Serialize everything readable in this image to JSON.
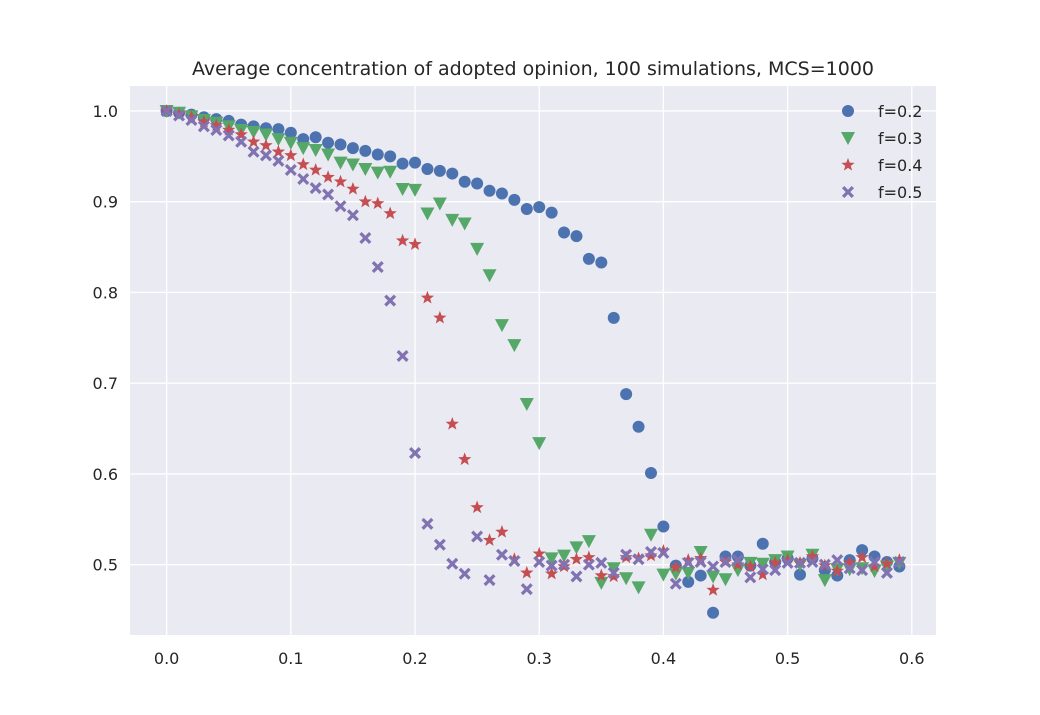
{
  "chart_data": {
    "type": "scatter",
    "title": "Average concentration of adopted opinion, 100 simulations, MCS=1000",
    "xlabel": "",
    "ylabel": "",
    "xlim": [
      -0.0295,
      0.6195
    ],
    "ylim": [
      0.4225,
      1.0275
    ],
    "xticks": [
      0.0,
      0.1,
      0.2,
      0.3,
      0.4,
      0.5,
      0.6
    ],
    "xtick_labels": [
      "0.0",
      "0.1",
      "0.2",
      "0.3",
      "0.4",
      "0.5",
      "0.6"
    ],
    "yticks": [
      0.5,
      0.6,
      0.7,
      0.8,
      0.9,
      1.0
    ],
    "ytick_labels": [
      "0.5",
      "0.6",
      "0.7",
      "0.8",
      "0.9",
      "1.0"
    ],
    "grid": true,
    "legend_position": "top-right",
    "series": [
      {
        "name": "f=0.2",
        "marker": "circle",
        "color": "#4c72b0",
        "x": [
          0.0,
          0.01,
          0.02,
          0.03,
          0.04,
          0.05,
          0.06,
          0.07,
          0.08,
          0.09,
          0.1,
          0.11,
          0.12,
          0.13,
          0.14,
          0.15,
          0.16,
          0.17,
          0.18,
          0.19,
          0.2,
          0.21,
          0.22,
          0.23,
          0.24,
          0.25,
          0.26,
          0.27,
          0.28,
          0.29,
          0.3,
          0.31,
          0.32,
          0.33,
          0.34,
          0.35,
          0.36,
          0.37,
          0.38,
          0.39,
          0.4,
          0.41,
          0.42,
          0.43,
          0.44,
          0.45,
          0.46,
          0.47,
          0.48,
          0.49,
          0.5,
          0.51,
          0.52,
          0.53,
          0.54,
          0.55,
          0.56,
          0.57,
          0.58,
          0.59
        ],
        "y": [
          1.0,
          0.998,
          0.996,
          0.993,
          0.991,
          0.989,
          0.985,
          0.983,
          0.981,
          0.98,
          0.976,
          0.969,
          0.971,
          0.965,
          0.963,
          0.959,
          0.956,
          0.952,
          0.95,
          0.942,
          0.943,
          0.936,
          0.934,
          0.931,
          0.922,
          0.92,
          0.912,
          0.909,
          0.902,
          0.892,
          0.894,
          0.888,
          0.866,
          0.862,
          0.837,
          0.833,
          0.772,
          0.688,
          0.652,
          0.601,
          0.542,
          0.499,
          0.481,
          0.488,
          0.447,
          0.509,
          0.509,
          0.499,
          0.523,
          0.503,
          0.507,
          0.489,
          0.507,
          0.494,
          0.488,
          0.505,
          0.516,
          0.509,
          0.503,
          0.498
        ]
      },
      {
        "name": "f=0.3",
        "marker": "triangle-down",
        "color": "#55a868",
        "x": [
          0.0,
          0.01,
          0.02,
          0.03,
          0.04,
          0.05,
          0.06,
          0.07,
          0.08,
          0.09,
          0.1,
          0.11,
          0.12,
          0.13,
          0.14,
          0.15,
          0.16,
          0.17,
          0.18,
          0.19,
          0.2,
          0.21,
          0.22,
          0.23,
          0.24,
          0.25,
          0.26,
          0.27,
          0.28,
          0.29,
          0.3,
          0.31,
          0.32,
          0.33,
          0.34,
          0.35,
          0.36,
          0.37,
          0.38,
          0.39,
          0.4,
          0.41,
          0.42,
          0.43,
          0.44,
          0.45,
          0.46,
          0.47,
          0.48,
          0.49,
          0.5,
          0.51,
          0.52,
          0.53,
          0.54,
          0.55,
          0.56,
          0.57,
          0.58,
          0.59
        ],
        "y": [
          1.0,
          0.998,
          0.994,
          0.99,
          0.987,
          0.983,
          0.979,
          0.977,
          0.974,
          0.969,
          0.965,
          0.959,
          0.957,
          0.952,
          0.943,
          0.941,
          0.936,
          0.932,
          0.933,
          0.914,
          0.913,
          0.887,
          0.898,
          0.88,
          0.876,
          0.848,
          0.819,
          0.764,
          0.742,
          0.677,
          0.634,
          0.507,
          0.51,
          0.519,
          0.526,
          0.48,
          0.496,
          0.485,
          0.475,
          0.533,
          0.489,
          0.49,
          0.491,
          0.514,
          0.487,
          0.484,
          0.494,
          0.502,
          0.501,
          0.505,
          0.509,
          0.5,
          0.511,
          0.483,
          0.495,
          0.495,
          0.496,
          0.493,
          0.498,
          0.502
        ]
      },
      {
        "name": "f=0.4",
        "marker": "star",
        "color": "#c44e52",
        "x": [
          0.0,
          0.01,
          0.02,
          0.03,
          0.04,
          0.05,
          0.06,
          0.07,
          0.08,
          0.09,
          0.1,
          0.11,
          0.12,
          0.13,
          0.14,
          0.15,
          0.16,
          0.17,
          0.18,
          0.19,
          0.2,
          0.21,
          0.22,
          0.23,
          0.24,
          0.25,
          0.26,
          0.27,
          0.28,
          0.29,
          0.3,
          0.31,
          0.32,
          0.33,
          0.34,
          0.35,
          0.36,
          0.37,
          0.38,
          0.39,
          0.4,
          0.41,
          0.42,
          0.43,
          0.44,
          0.45,
          0.46,
          0.47,
          0.48,
          0.49,
          0.5,
          0.51,
          0.52,
          0.53,
          0.54,
          0.55,
          0.56,
          0.57,
          0.58,
          0.59
        ],
        "y": [
          1.0,
          0.996,
          0.993,
          0.988,
          0.984,
          0.979,
          0.974,
          0.966,
          0.962,
          0.955,
          0.951,
          0.941,
          0.935,
          0.927,
          0.922,
          0.914,
          0.9,
          0.898,
          0.887,
          0.857,
          0.853,
          0.794,
          0.772,
          0.655,
          0.616,
          0.563,
          0.527,
          0.536,
          0.506,
          0.491,
          0.512,
          0.49,
          0.498,
          0.506,
          0.508,
          0.488,
          0.487,
          0.508,
          0.507,
          0.51,
          0.515,
          0.497,
          0.505,
          0.507,
          0.472,
          0.503,
          0.5,
          0.498,
          0.489,
          0.502,
          0.505,
          0.502,
          0.509,
          0.499,
          0.493,
          0.502,
          0.508,
          0.498,
          0.501,
          0.505
        ]
      },
      {
        "name": "f=0.5",
        "marker": "x",
        "color": "#8172b2",
        "x": [
          0.0,
          0.01,
          0.02,
          0.03,
          0.04,
          0.05,
          0.06,
          0.07,
          0.08,
          0.09,
          0.1,
          0.11,
          0.12,
          0.13,
          0.14,
          0.15,
          0.16,
          0.17,
          0.18,
          0.19,
          0.2,
          0.21,
          0.22,
          0.23,
          0.24,
          0.25,
          0.26,
          0.27,
          0.28,
          0.29,
          0.3,
          0.31,
          0.32,
          0.33,
          0.34,
          0.35,
          0.36,
          0.37,
          0.38,
          0.39,
          0.4,
          0.41,
          0.42,
          0.43,
          0.44,
          0.45,
          0.46,
          0.47,
          0.48,
          0.49,
          0.5,
          0.51,
          0.52,
          0.53,
          0.54,
          0.55,
          0.56,
          0.57,
          0.58,
          0.59
        ],
        "y": [
          1.0,
          0.995,
          0.99,
          0.983,
          0.979,
          0.973,
          0.966,
          0.955,
          0.951,
          0.945,
          0.935,
          0.925,
          0.915,
          0.908,
          0.895,
          0.885,
          0.86,
          0.828,
          0.791,
          0.73,
          0.623,
          0.545,
          0.522,
          0.501,
          0.49,
          0.531,
          0.483,
          0.511,
          0.504,
          0.473,
          0.503,
          0.499,
          0.5,
          0.487,
          0.5,
          0.502,
          0.491,
          0.511,
          0.506,
          0.514,
          0.513,
          0.479,
          0.502,
          0.503,
          0.498,
          0.503,
          0.505,
          0.486,
          0.495,
          0.494,
          0.502,
          0.502,
          0.503,
          0.5,
          0.505,
          0.496,
          0.494,
          0.503,
          0.491,
          0.503
        ]
      }
    ]
  }
}
